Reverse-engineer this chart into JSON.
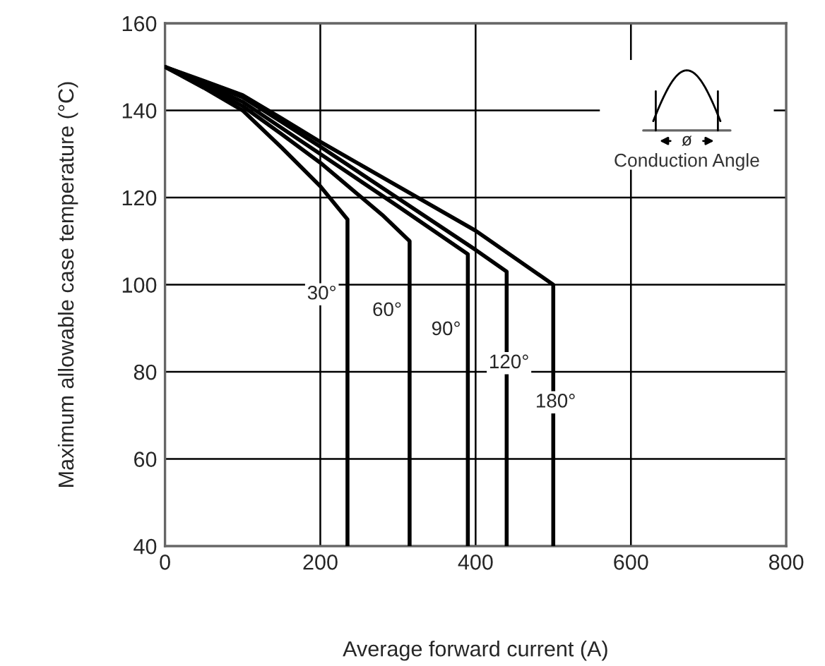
{
  "chart_data": {
    "type": "line",
    "xlabel": "Average forward current (A)",
    "ylabel": "Maximum allowable case temperature (°C)",
    "xlim": [
      0,
      800
    ],
    "ylim": [
      40,
      160
    ],
    "xticks": [
      0,
      200,
      400,
      600,
      800
    ],
    "yticks": [
      40,
      60,
      80,
      100,
      120,
      140,
      160
    ],
    "grid": true,
    "marker": "none",
    "line_style": "solid",
    "series": [
      {
        "color": "#000000",
        "x": [
          0,
          50,
          100,
          150,
          200,
          235,
          235
        ],
        "values": [
          150,
          145.2,
          140,
          131.5,
          122.6,
          115,
          40
        ]
      },
      {
        "color": "#000000",
        "x": [
          0,
          50,
          100,
          150,
          200,
          280,
          315,
          315
        ],
        "values": [
          150,
          145.6,
          141,
          134.6,
          128,
          116,
          110,
          40
        ]
      },
      {
        "color": "#000000",
        "x": [
          0,
          50,
          100,
          150,
          200,
          300,
          390,
          390
        ],
        "values": [
          150,
          146,
          142,
          136,
          130,
          118,
          107,
          40
        ]
      },
      {
        "color": "#000000",
        "x": [
          0,
          50,
          100,
          150,
          200,
          400,
          440,
          440
        ],
        "values": [
          150,
          146.5,
          143,
          137.4,
          131.7,
          108,
          103,
          40
        ]
      },
      {
        "color": "#000000",
        "x": [
          0,
          50,
          100,
          150,
          200,
          400,
          500,
          500
        ],
        "values": [
          150,
          146.8,
          143.5,
          138.2,
          132.8,
          112.4,
          100,
          40
        ]
      }
    ],
    "annotations": [
      {
        "text": "30°",
        "x": 202,
        "y": 97.8
      },
      {
        "text": "60°",
        "x": 286,
        "y": 94
      },
      {
        "text": "90°",
        "x": 362,
        "y": 89.6
      },
      {
        "text": "120°",
        "x": 443,
        "y": 82
      },
      {
        "text": "180°",
        "x": 503,
        "y": 73
      },
      "ø",
      "Conduction Angle"
    ]
  }
}
